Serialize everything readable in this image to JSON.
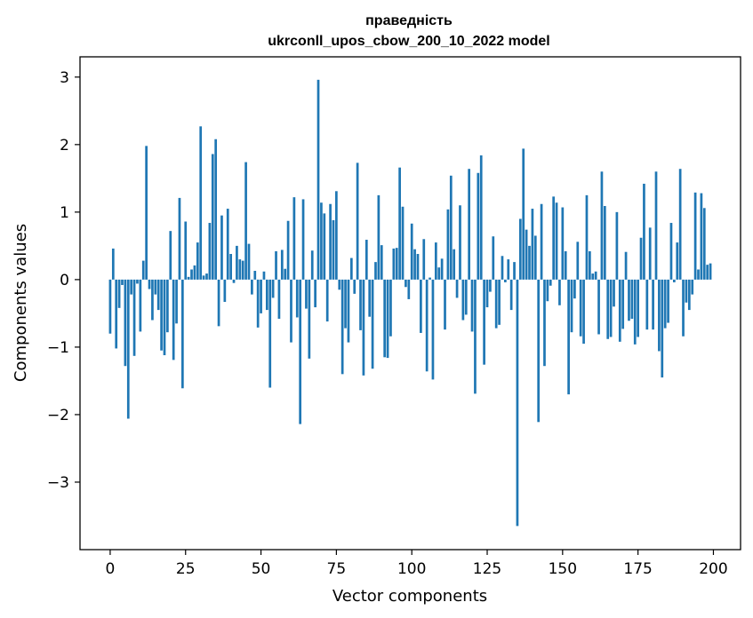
{
  "chart_data": {
    "type": "bar",
    "title": "праведність",
    "subtitle": "ukrconll_upos_cbow_200_10_2022 model",
    "xlabel": "Vector components",
    "ylabel": "Components values",
    "xlim": [
      -10,
      209
    ],
    "ylim": [
      -4.0,
      3.3
    ],
    "xticks": [
      0,
      25,
      50,
      75,
      100,
      125,
      150,
      175,
      200
    ],
    "xtick_labels": [
      "0",
      "25",
      "50",
      "75",
      "100",
      "125",
      "150",
      "175",
      "200"
    ],
    "yticks": [
      -3,
      -2,
      -1,
      0,
      1,
      2,
      3
    ],
    "ytick_labels": [
      "−3",
      "−2",
      "−1",
      "0",
      "1",
      "2",
      "3"
    ],
    "grid": false,
    "bar_color": "#1f77b4",
    "values": [
      -0.8,
      0.46,
      -1.02,
      -0.42,
      -0.08,
      -1.28,
      -2.06,
      -0.22,
      -1.13,
      -0.06,
      -0.77,
      0.28,
      1.98,
      -0.14,
      -0.6,
      -0.22,
      -0.45,
      -1.05,
      -1.12,
      -0.78,
      0.72,
      -1.19,
      -0.65,
      1.21,
      -1.61,
      0.86,
      0.04,
      0.15,
      0.21,
      0.55,
      2.27,
      0.06,
      0.09,
      0.84,
      1.86,
      2.08,
      -0.69,
      0.95,
      -0.33,
      1.05,
      0.38,
      -0.05,
      0.5,
      0.3,
      0.28,
      1.74,
      0.53,
      -0.22,
      0.13,
      -0.71,
      -0.5,
      0.12,
      -0.45,
      -1.6,
      -0.27,
      0.42,
      -0.58,
      0.44,
      0.16,
      0.87,
      -0.93,
      1.22,
      -0.56,
      -2.14,
      1.19,
      -0.43,
      -1.17,
      0.43,
      -0.41,
      2.96,
      1.14,
      0.98,
      -0.62,
      1.12,
      0.88,
      1.31,
      -0.15,
      -1.4,
      -0.72,
      -0.93,
      0.32,
      -0.21,
      1.73,
      -0.75,
      -1.42,
      0.59,
      -0.55,
      -1.32,
      0.26,
      1.25,
      0.51,
      -1.15,
      -1.16,
      -0.84,
      0.46,
      0.47,
      1.66,
      1.08,
      -0.11,
      -0.29,
      0.83,
      0.45,
      0.38,
      -0.79,
      0.6,
      -1.36,
      0.03,
      -1.48,
      0.55,
      0.18,
      0.31,
      -0.74,
      1.04,
      1.54,
      0.45,
      -0.27,
      1.1,
      -0.6,
      -0.52,
      1.64,
      -0.77,
      -1.69,
      1.58,
      1.84,
      -1.26,
      -0.41,
      -0.18,
      0.64,
      -0.72,
      -0.67,
      0.35,
      -0.04,
      0.3,
      -0.45,
      0.26,
      -3.65,
      0.9,
      1.94,
      0.74,
      0.5,
      1.05,
      0.65,
      -2.11,
      1.12,
      -1.28,
      -0.32,
      -0.09,
      1.23,
      1.14,
      -0.38,
      1.07,
      0.42,
      -1.7,
      -0.78,
      -0.28,
      0.56,
      -0.84,
      -0.95,
      1.25,
      0.42,
      0.09,
      0.12,
      -0.81,
      1.6,
      1.09,
      -0.88,
      -0.85,
      -0.4,
      1.0,
      -0.92,
      -0.73,
      0.41,
      -0.61,
      -0.58,
      -0.96,
      -0.85,
      0.62,
      1.42,
      -0.74,
      0.77,
      -0.74,
      1.6,
      -1.06,
      -1.45,
      -0.72,
      -0.64,
      0.84,
      -0.04,
      0.55,
      1.64,
      -0.84,
      -0.34,
      -0.45,
      -0.22,
      1.29,
      0.15,
      1.28,
      1.06,
      0.22,
      0.24
    ]
  }
}
